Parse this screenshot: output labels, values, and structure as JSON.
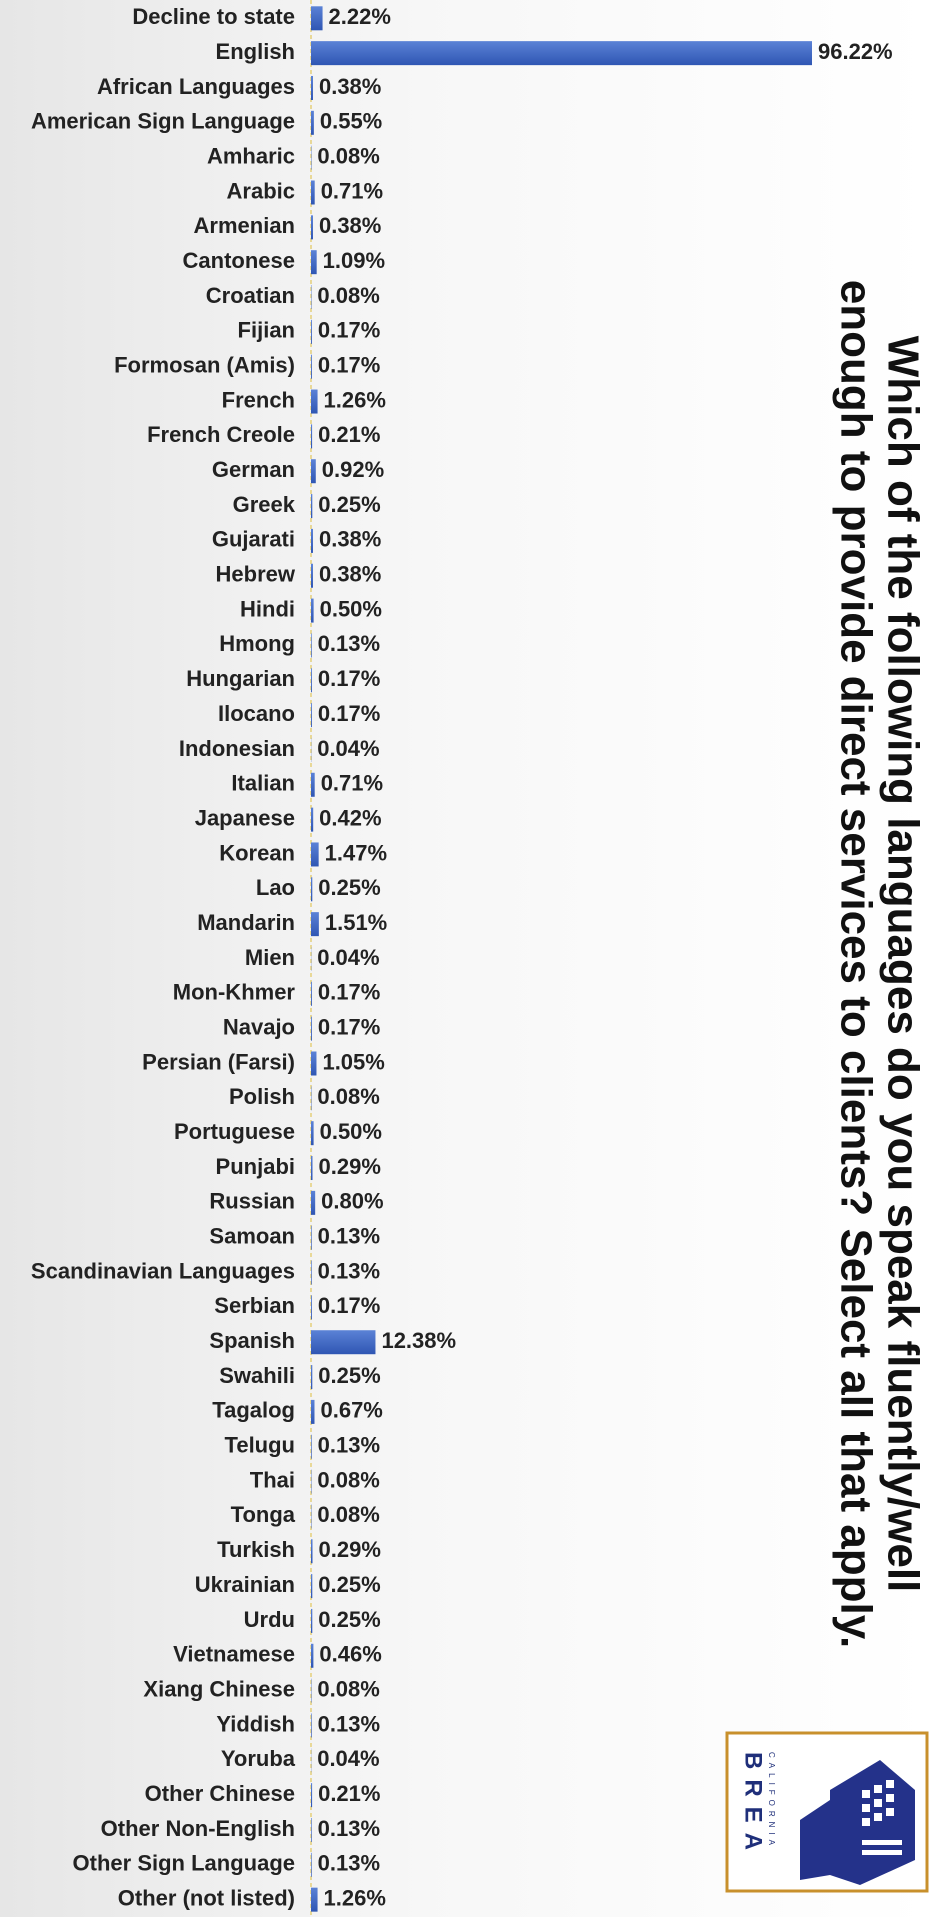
{
  "chart_data": {
    "type": "bar",
    "orientation": "horizontal",
    "title": [
      "Which of the following languages do you speak fluently/well",
      "enough to provide direct services to clients? Select all that apply."
    ],
    "categories": [
      "Decline to state",
      "English",
      "African Languages",
      "American Sign Language",
      "Amharic",
      "Arabic",
      "Armenian",
      "Cantonese",
      "Croatian",
      "Fijian",
      "Formosan (Amis)",
      "French",
      "French Creole",
      "German",
      "Greek",
      "Gujarati",
      "Hebrew",
      "Hindi",
      "Hmong",
      "Hungarian",
      "Ilocano",
      "Indonesian",
      "Italian",
      "Japanese",
      "Korean",
      "Lao",
      "Mandarin",
      "Mien",
      "Mon-Khmer",
      "Navajo",
      "Persian (Farsi)",
      "Polish",
      "Portuguese",
      "Punjabi",
      "Russian",
      "Samoan",
      "Scandinavian Languages",
      "Serbian",
      "Spanish",
      "Swahili",
      "Tagalog",
      "Telugu",
      "Thai",
      "Tonga",
      "Turkish",
      "Ukrainian",
      "Urdu",
      "Vietnamese",
      "Xiang Chinese",
      "Yiddish",
      "Yoruba",
      "Other Chinese",
      "Other Non-English",
      "Other Sign Language",
      "Other (not listed)"
    ],
    "values": [
      2.22,
      96.22,
      0.38,
      0.55,
      0.08,
      0.71,
      0.38,
      1.09,
      0.08,
      0.17,
      0.17,
      1.26,
      0.21,
      0.92,
      0.25,
      0.38,
      0.38,
      0.5,
      0.13,
      0.17,
      0.17,
      0.04,
      0.71,
      0.42,
      1.47,
      0.25,
      1.51,
      0.04,
      0.17,
      0.17,
      1.05,
      0.08,
      0.5,
      0.29,
      0.8,
      0.13,
      0.13,
      0.17,
      12.38,
      0.25,
      0.67,
      0.13,
      0.08,
      0.08,
      0.29,
      0.25,
      0.25,
      0.46,
      0.08,
      0.13,
      0.04,
      0.21,
      0.13,
      0.13,
      1.26
    ],
    "value_labels": [
      "2.22%",
      "96.22%",
      "0.38%",
      "0.55%",
      "0.08%",
      "0.71%",
      "0.38%",
      "1.09%",
      "0.08%",
      "0.17%",
      "0.17%",
      "1.26%",
      "0.21%",
      "0.92%",
      "0.25%",
      "0.38%",
      "0.38%",
      "0.50%",
      "0.13%",
      "0.17%",
      "0.17%",
      "0.04%",
      "0.71%",
      "0.42%",
      "1.47%",
      "0.25%",
      "1.51%",
      "0.04%",
      "0.17%",
      "0.17%",
      "1.05%",
      "0.08%",
      "0.50%",
      "0.29%",
      "0.80%",
      "0.13%",
      "0.13%",
      "0.17%",
      "12.38%",
      "0.25%",
      "0.67%",
      "0.13%",
      "0.08%",
      "0.08%",
      "0.29%",
      "0.25%",
      "0.25%",
      "0.46%",
      "0.08%",
      "0.13%",
      "0.04%",
      "0.21%",
      "0.13%",
      "0.13%",
      "1.26%"
    ],
    "color": "#3a64c4"
  },
  "logo": {
    "name": "BREA",
    "subtitle": "CALIFORNIA"
  }
}
